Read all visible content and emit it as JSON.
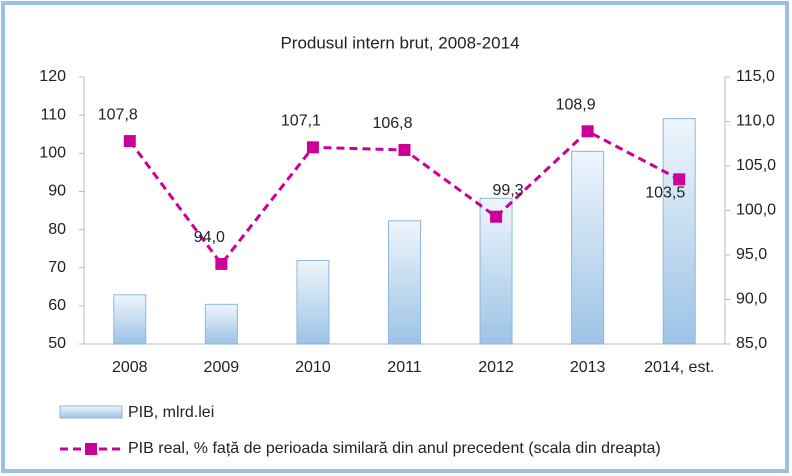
{
  "chart_data": {
    "type": "bar",
    "title": "Produsul intern brut, 2008-2014",
    "categories": [
      "2008",
      "2009",
      "2010",
      "2011",
      "2012",
      "2013",
      "2014, est."
    ],
    "series": [
      {
        "name": "PIB, mlrd.lei",
        "color": "#9dc3e6",
        "values": [
          62.9,
          60.4,
          71.9,
          82.3,
          88.2,
          100.5,
          109.1
        ]
      },
      {
        "name": "PIB real, % față de perioada similară din anul precedent (scala din dreapta)",
        "type": "line",
        "axis": "y2",
        "color": "#cc0099",
        "values": [
          107.8,
          94.0,
          107.1,
          106.8,
          99.3,
          108.9,
          103.5
        ],
        "value_labels": [
          "107,8",
          "94,0",
          "107,1",
          "106,8",
          "99,3",
          "108,9",
          "103,5"
        ]
      }
    ],
    "ylim": [
      50,
      120
    ],
    "yticks": [
      50,
      60,
      70,
      80,
      90,
      100,
      110,
      120
    ],
    "y2lim": [
      85,
      115
    ],
    "y2ticks": [
      {
        "value": 85,
        "label": "85,0"
      },
      {
        "value": 90,
        "label": "90,0"
      },
      {
        "value": 95,
        "label": "95,0"
      },
      {
        "value": 100,
        "label": "100,0"
      },
      {
        "value": 105,
        "label": "105,0"
      },
      {
        "value": 110,
        "label": "110,0"
      },
      {
        "value": 115,
        "label": "115,0"
      }
    ],
    "grid": false
  }
}
